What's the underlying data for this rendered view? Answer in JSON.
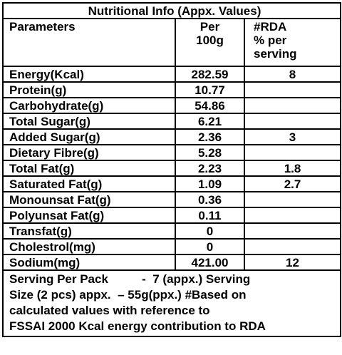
{
  "title": "Nutritional Info (Appx. Values)",
  "header": {
    "parameters": "Parameters",
    "per_100g": [
      "Per",
      "100g"
    ],
    "rda": [
      "#RDA",
      "% per",
      "serving"
    ]
  },
  "rows": [
    [
      "Energy(Kcal)",
      "282.59",
      "8"
    ],
    [
      "Protein(g)",
      "10.77",
      null
    ],
    [
      "Carbohydrate(g)",
      "54.86",
      null
    ],
    [
      "Total Sugar(g)",
      "6.21",
      null
    ],
    [
      "Added Sugar(g)",
      "2.36",
      "3"
    ],
    [
      "Dietary Fibre(g)",
      "5.28",
      null
    ],
    [
      "Total Fat(g)",
      "2.23",
      "1.8"
    ],
    [
      "Saturated Fat(g)",
      "1.09",
      "2.7"
    ],
    [
      "Monounsat Fat(g)",
      "0.36",
      null
    ],
    [
      "Polyunsat Fat(g)",
      "0.11",
      null
    ],
    [
      "Transfat(g)",
      "0",
      null
    ],
    [
      "Cholestrol(mg)",
      "0",
      null
    ],
    [
      "Sodium(mg)",
      "421.00",
      "12"
    ]
  ],
  "footer": [
    "Serving Per Pack          -  7 (appx.) Serving",
    "Size (2 pcs) appx.  – 55g(ppx.) #Based on",
    "calculated values with reference to",
    "FSSAI 2000 Kcal energy contribution to RDA"
  ]
}
